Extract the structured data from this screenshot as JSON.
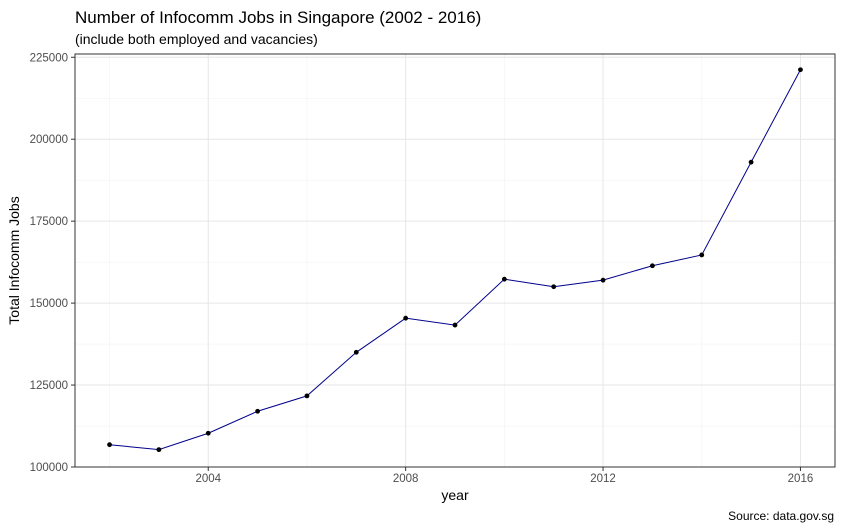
{
  "chart_data": {
    "type": "line",
    "title": "Number of Infocomm Jobs in Singapore (2002 - 2016)",
    "subtitle": "(include both employed and vacancies)",
    "caption": "Source: data.gov.sg",
    "xlabel": "year",
    "ylabel": "Total Infocomm Jobs",
    "x": [
      2002,
      2003,
      2004,
      2005,
      2006,
      2007,
      2008,
      2009,
      2010,
      2011,
      2012,
      2013,
      2014,
      2015,
      2016
    ],
    "values": [
      106800,
      105300,
      110300,
      117000,
      121700,
      135000,
      145400,
      143300,
      157300,
      155000,
      157000,
      161400,
      164700,
      193000,
      221200
    ],
    "xlim": [
      2001.3,
      2016.7
    ],
    "ylim": [
      100000,
      226000
    ],
    "xticks": [
      2004,
      2008,
      2012,
      2016
    ],
    "yticks": [
      100000,
      125000,
      150000,
      175000,
      200000,
      225000
    ],
    "xtick_labels": [
      "2004",
      "2008",
      "2012",
      "2016"
    ],
    "ytick_labels": [
      "100000",
      "125000",
      "150000",
      "175000",
      "200000",
      "225000"
    ],
    "grid": true,
    "line_color": "#00008b",
    "point_color": "#000000"
  }
}
